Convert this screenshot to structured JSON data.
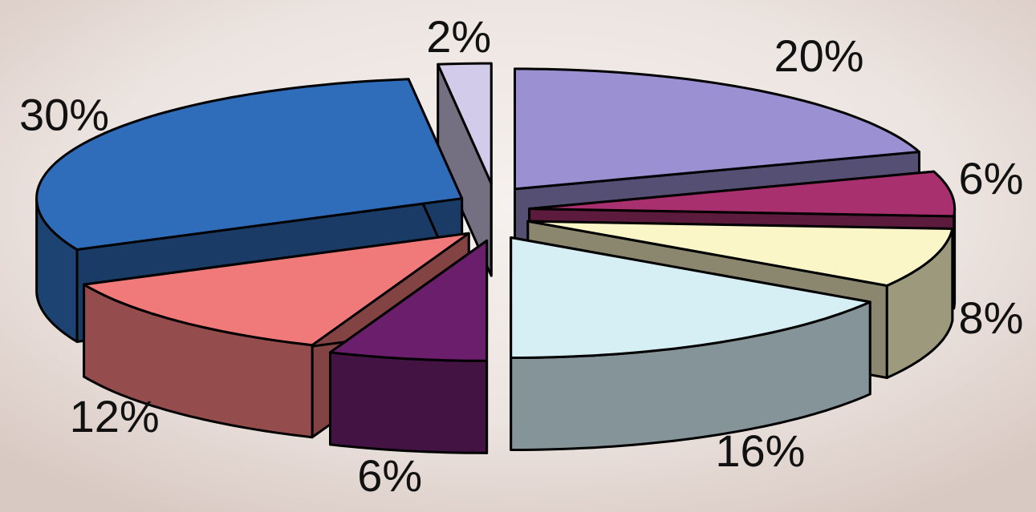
{
  "chart_data": {
    "type": "pie3d",
    "values": [
      20,
      6,
      8,
      16,
      6,
      12,
      30,
      2
    ],
    "value_labels": [
      "20%",
      "6%",
      "8%",
      "16%",
      "6%",
      "12%",
      "30%",
      "2%"
    ],
    "colors": [
      "#9a90d2",
      "#a8306e",
      "#fbf6c8",
      "#d6eff5",
      "#6a1e6c",
      "#f07a7a",
      "#2f6cb9",
      "#d2cbea"
    ]
  }
}
